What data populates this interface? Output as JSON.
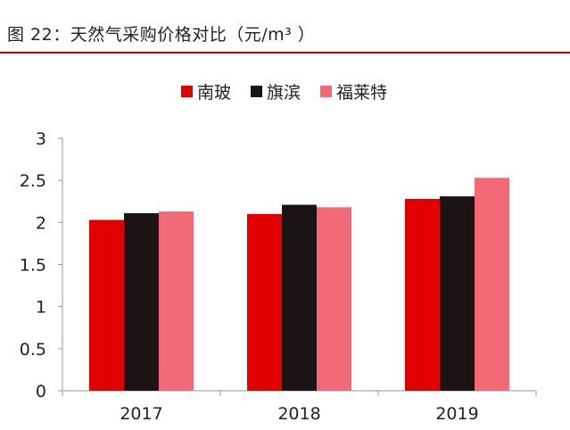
{
  "figure_title": "图 22：天然气采购价格对比（元/m³ ）",
  "colors": {
    "title_rule": "#c00000",
    "axis": "#999999"
  },
  "chart_data": {
    "type": "bar",
    "title": "",
    "xlabel": "",
    "ylabel": "",
    "categories": [
      "2017",
      "2018",
      "2019"
    ],
    "series": [
      {
        "name": "南玻",
        "color": "#e00000",
        "values": [
          2.03,
          2.1,
          2.28
        ]
      },
      {
        "name": "旗滨",
        "color": "#1c1414",
        "values": [
          2.11,
          2.21,
          2.31
        ]
      },
      {
        "name": "福莱特",
        "color": "#f26a75",
        "values": [
          2.13,
          2.18,
          2.53
        ]
      }
    ],
    "ylim": [
      0,
      3
    ],
    "yticks": [
      "0",
      "0.5",
      "1",
      "1.5",
      "2",
      "2.5",
      "3"
    ],
    "grid": false,
    "legend_position": "top-center"
  }
}
